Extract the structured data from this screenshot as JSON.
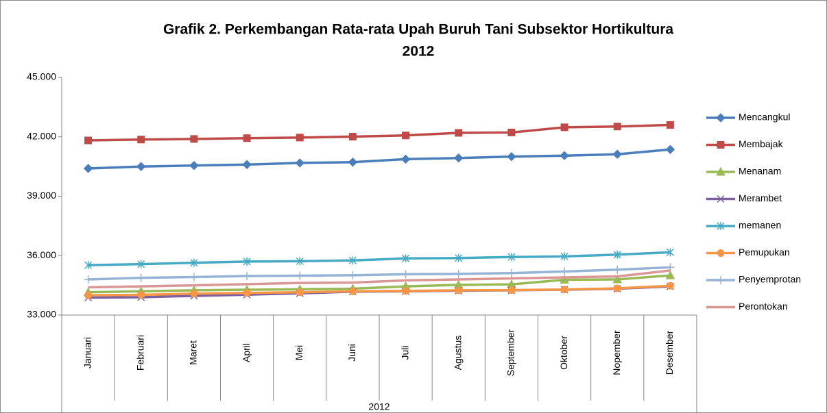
{
  "chart_data": {
    "type": "line",
    "title": [
      "Grafik 2. Perkembangan Rata-rata Upah Buruh Tani Subsektor Hortikultura",
      "2012"
    ],
    "categories": [
      "Januari",
      "Februari",
      "Maret",
      "April",
      "Mei",
      "Juni",
      "Juli",
      "Agustus",
      "September",
      "Oktober",
      "Nopember",
      "Desember"
    ],
    "category_group": "2012",
    "ylim": [
      33000,
      45000
    ],
    "yticks": [
      {
        "value": 33000,
        "label": "33.000"
      },
      {
        "value": 36000,
        "label": "36.000"
      },
      {
        "value": 39000,
        "label": "39.000"
      },
      {
        "value": 42000,
        "label": "42.000"
      },
      {
        "value": 45000,
        "label": "45.000"
      }
    ],
    "grid": false,
    "legend": "right",
    "series": [
      {
        "name": "Mencangkul",
        "color": "#4a7ebb",
        "marker": "diamond",
        "values": [
          40400,
          40500,
          40550,
          40600,
          40680,
          40720,
          40870,
          40930,
          41000,
          41050,
          41120,
          41360
        ]
      },
      {
        "name": "Membajak",
        "color": "#be4b48",
        "marker": "square",
        "values": [
          41820,
          41860,
          41890,
          41930,
          41960,
          42010,
          42070,
          42200,
          42220,
          42480,
          42520,
          42600
        ]
      },
      {
        "name": "Menanam",
        "color": "#98b954",
        "marker": "triangle",
        "values": [
          34150,
          34200,
          34250,
          34280,
          34300,
          34330,
          34450,
          34520,
          34550,
          34780,
          34800,
          35000
        ]
      },
      {
        "name": "Merambet",
        "color": "#7d60a0",
        "marker": "x",
        "values": [
          33880,
          33900,
          33970,
          34030,
          34100,
          34180,
          34200,
          34230,
          34250,
          34280,
          34330,
          34450
        ]
      },
      {
        "name": "memanen",
        "color": "#46aac5",
        "marker": "asterisk",
        "values": [
          35520,
          35570,
          35640,
          35700,
          35720,
          35760,
          35860,
          35880,
          35930,
          35960,
          36050,
          36170
        ]
      },
      {
        "name": "Pemupukan",
        "color": "#f79646",
        "marker": "circle",
        "values": [
          34000,
          34020,
          34080,
          34120,
          34150,
          34200,
          34220,
          34250,
          34260,
          34290,
          34350,
          34480
        ]
      },
      {
        "name": "Penyemprotan",
        "color": "#95b3d7",
        "marker": "plus",
        "values": [
          34800,
          34880,
          34920,
          34970,
          34990,
          35010,
          35060,
          35080,
          35120,
          35200,
          35290,
          35410
        ]
      },
      {
        "name": "Perontokan",
        "color": "#d99694",
        "marker": "none",
        "values": [
          34400,
          34450,
          34500,
          34560,
          34620,
          34640,
          34750,
          34800,
          34850,
          34900,
          34950,
          35250
        ]
      }
    ]
  }
}
